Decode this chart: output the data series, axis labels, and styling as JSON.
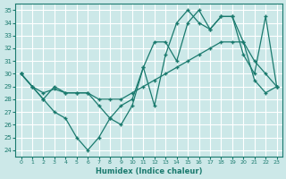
{
  "xlabel": "Humidex (Indice chaleur)",
  "bg_color": "#cce8e8",
  "grid_color": "#ffffff",
  "line_color": "#1a7a6e",
  "xlim": [
    -0.5,
    23.5
  ],
  "ylim": [
    23.5,
    35.5
  ],
  "yticks": [
    24,
    25,
    26,
    27,
    28,
    29,
    30,
    31,
    32,
    33,
    34,
    35
  ],
  "xticks": [
    0,
    1,
    2,
    3,
    4,
    5,
    6,
    7,
    8,
    9,
    10,
    11,
    12,
    13,
    14,
    15,
    16,
    17,
    18,
    19,
    20,
    21,
    22,
    23
  ],
  "line1_x": [
    0,
    1,
    2,
    3,
    4,
    5,
    6,
    7,
    8,
    9,
    10,
    11,
    12,
    13,
    14,
    15,
    16,
    17,
    18,
    19,
    20,
    21,
    22,
    23
  ],
  "line1_y": [
    30.0,
    29.0,
    28.5,
    28.8,
    28.5,
    28.5,
    28.5,
    28.0,
    28.0,
    28.0,
    28.5,
    29.0,
    29.5,
    30.0,
    30.5,
    31.0,
    31.5,
    32.0,
    32.5,
    32.5,
    32.5,
    29.5,
    28.5,
    29.0
  ],
  "line2_x": [
    0,
    1,
    2,
    3,
    4,
    5,
    6,
    7,
    8,
    9,
    10,
    11,
    12,
    13,
    14,
    15,
    16,
    17,
    18,
    19,
    20,
    21,
    22,
    23
  ],
  "line2_y": [
    30.0,
    29.0,
    28.0,
    29.0,
    28.5,
    28.5,
    28.5,
    27.5,
    26.5,
    27.5,
    28.0,
    30.5,
    32.5,
    32.5,
    31.0,
    34.0,
    35.0,
    33.5,
    34.5,
    34.5,
    32.5,
    31.0,
    30.0,
    29.0
  ],
  "line3_x": [
    0,
    1,
    2,
    3,
    4,
    5,
    6,
    7,
    8,
    9,
    10,
    11,
    12,
    13,
    14,
    15,
    16,
    17,
    18,
    19,
    20,
    21,
    22,
    23
  ],
  "line3_y": [
    30.0,
    29.0,
    28.0,
    27.0,
    26.5,
    25.0,
    24.0,
    25.0,
    26.5,
    26.0,
    27.5,
    30.5,
    27.5,
    31.5,
    34.0,
    35.0,
    34.0,
    33.5,
    34.5,
    34.5,
    31.5,
    30.0,
    34.5,
    29.0
  ]
}
